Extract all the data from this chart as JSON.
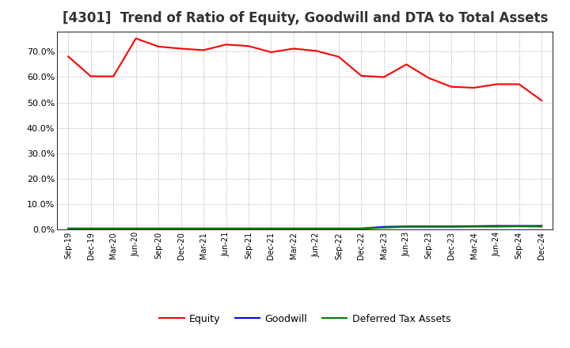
{
  "title": "[4301]  Trend of Ratio of Equity, Goodwill and DTA to Total Assets",
  "title_fontsize": 12,
  "labels": [
    "Sep-19",
    "Dec-19",
    "Mar-20",
    "Jun-20",
    "Sep-20",
    "Dec-20",
    "Mar-21",
    "Jun-21",
    "Sep-21",
    "Dec-21",
    "Mar-22",
    "Jun-22",
    "Sep-22",
    "Dec-22",
    "Mar-23",
    "Jun-23",
    "Sep-23",
    "Dec-23",
    "Mar-24",
    "Jun-24",
    "Sep-24",
    "Dec-24"
  ],
  "equity": [
    0.681,
    0.603,
    0.603,
    0.752,
    0.72,
    0.712,
    0.706,
    0.728,
    0.722,
    0.698,
    0.712,
    0.703,
    0.68,
    0.605,
    0.6,
    0.65,
    0.596,
    0.562,
    0.558,
    0.572,
    0.572,
    0.508
  ],
  "goodwill": [
    0.005,
    0.005,
    0.005,
    0.005,
    0.005,
    0.005,
    0.005,
    0.005,
    0.005,
    0.005,
    0.005,
    0.005,
    0.005,
    0.005,
    0.011,
    0.013,
    0.013,
    0.013,
    0.014,
    0.015,
    0.015,
    0.015
  ],
  "dta": [
    0.004,
    0.004,
    0.004,
    0.004,
    0.004,
    0.004,
    0.004,
    0.004,
    0.004,
    0.004,
    0.004,
    0.004,
    0.004,
    0.004,
    0.008,
    0.011,
    0.011,
    0.011,
    0.012,
    0.012,
    0.013,
    0.012
  ],
  "equity_color": "#ff0000",
  "goodwill_color": "#0000ff",
  "dta_color": "#008000",
  "ylim": [
    0.0,
    0.78
  ],
  "yticks": [
    0.0,
    0.1,
    0.2,
    0.3,
    0.4,
    0.5,
    0.6,
    0.7
  ],
  "bg_color": "#ffffff",
  "grid_color": "#999999",
  "legend_labels": [
    "Equity",
    "Goodwill",
    "Deferred Tax Assets"
  ]
}
